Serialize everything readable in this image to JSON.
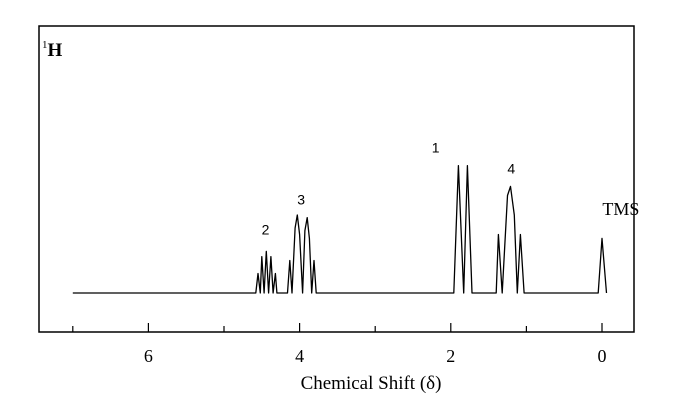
{
  "chart_data": {
    "type": "line",
    "nucleus": {
      "prefix": "1",
      "label": "H"
    },
    "xlabel": "Chemical Shift (δ)",
    "ylabel": "",
    "x_reversed": true,
    "xlim": [
      7.0,
      -0.1
    ],
    "x_major_ticks": [
      6,
      4,
      2,
      0
    ],
    "x_tick_labels": [
      "6",
      "4",
      "2",
      "0"
    ],
    "x_minor_ticks": [
      7,
      5,
      3,
      1
    ],
    "grid": false,
    "series": [
      {
        "points": [
          [
            7.0,
            0
          ],
          [
            4.58,
            0
          ],
          [
            4.55,
            0.15
          ],
          [
            4.52,
            0
          ],
          [
            4.5,
            0.28
          ],
          [
            4.47,
            0
          ],
          [
            4.44,
            0.32
          ],
          [
            4.41,
            0
          ],
          [
            4.38,
            0.28
          ],
          [
            4.35,
            0
          ],
          [
            4.32,
            0.15
          ],
          [
            4.3,
            0
          ],
          [
            4.16,
            0
          ],
          [
            4.13,
            0.25
          ],
          [
            4.1,
            0
          ],
          [
            4.06,
            0.5
          ],
          [
            4.03,
            0.6
          ],
          [
            4.0,
            0.45
          ],
          [
            3.96,
            0
          ],
          [
            3.93,
            0.48
          ],
          [
            3.9,
            0.58
          ],
          [
            3.87,
            0.42
          ],
          [
            3.84,
            0
          ],
          [
            3.81,
            0.25
          ],
          [
            3.78,
            0
          ],
          [
            1.96,
            0
          ],
          [
            1.9,
            0.98
          ],
          [
            1.83,
            0
          ],
          [
            1.78,
            0.98
          ],
          [
            1.72,
            0
          ],
          [
            1.4,
            0
          ],
          [
            1.37,
            0.45
          ],
          [
            1.32,
            0
          ],
          [
            1.25,
            0.75
          ],
          [
            1.21,
            0.82
          ],
          [
            1.16,
            0.6
          ],
          [
            1.12,
            0
          ],
          [
            1.08,
            0.45
          ],
          [
            1.03,
            0
          ],
          [
            0.05,
            0
          ],
          [
            0.0,
            0.42
          ],
          [
            -0.06,
            0
          ]
        ]
      }
    ],
    "annotations": [
      {
        "text": "1",
        "x": 2.2,
        "y": 1.08
      },
      {
        "text": "2",
        "x": 4.45,
        "y": 0.45
      },
      {
        "text": "3",
        "x": 3.98,
        "y": 0.68
      },
      {
        "text": "4",
        "x": 1.2,
        "y": 0.92
      },
      {
        "text": "TMS",
        "x": -0.25,
        "y": 0.6
      }
    ]
  }
}
